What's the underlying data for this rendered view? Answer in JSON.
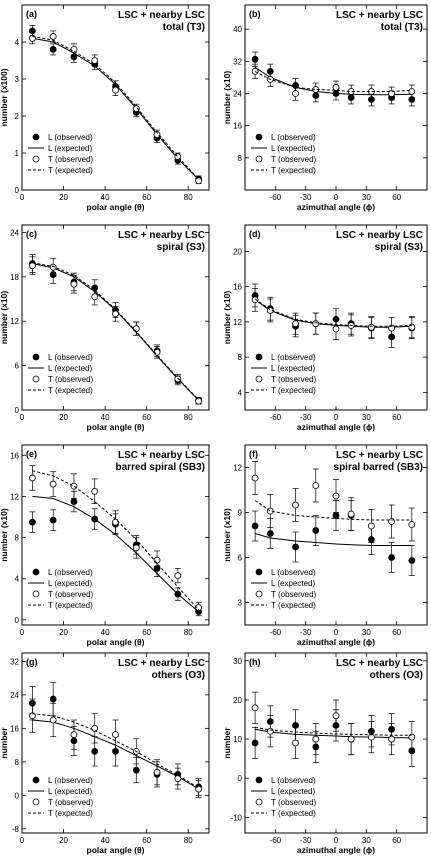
{
  "chart_data": [
    {
      "panel": "(a)",
      "type": "scatter",
      "title": "LSC + nearby LSC",
      "subtitle": "total (T3)",
      "xlabel": "polar angle (θ)",
      "ylabel": "number (x100)",
      "xlim": [
        0,
        90
      ],
      "ylim": [
        0,
        5
      ],
      "xticks": [
        0,
        20,
        40,
        60,
        80
      ],
      "yticks": [
        0,
        1,
        2,
        3,
        4
      ],
      "x": [
        5,
        15,
        25,
        35,
        45,
        55,
        65,
        75,
        85
      ],
      "series": [
        {
          "name": "L (observed)",
          "marker": "filled",
          "values": [
            4.3,
            3.8,
            3.6,
            3.4,
            2.8,
            2.1,
            1.4,
            0.8,
            0.3
          ],
          "err": [
            0.15,
            0.15,
            0.15,
            0.15,
            0.15,
            0.12,
            0.12,
            0.1,
            0.08
          ]
        },
        {
          "name": "L (expected)",
          "line": "solid",
          "values": [
            4.1,
            4.0,
            3.7,
            3.35,
            2.85,
            2.2,
            1.5,
            0.85,
            0.28
          ]
        },
        {
          "name": "T (observed)",
          "marker": "open",
          "values": [
            4.1,
            4.15,
            3.8,
            3.5,
            2.7,
            2.2,
            1.5,
            0.9,
            0.25
          ],
          "err": [
            0.15,
            0.15,
            0.15,
            0.15,
            0.15,
            0.12,
            0.12,
            0.1,
            0.08
          ]
        },
        {
          "name": "T (expected)",
          "line": "dashed",
          "values": [
            4.15,
            4.05,
            3.75,
            3.4,
            2.9,
            2.25,
            1.55,
            0.9,
            0.3
          ]
        }
      ],
      "legend": "bottom-left"
    },
    {
      "panel": "(b)",
      "type": "scatter",
      "title": "LSC + nearby LSC",
      "subtitle": "total (T3)",
      "xlabel": "azimuthal angle (ϕ)",
      "ylabel": "number (x10)",
      "xlim": [
        -90,
        90
      ],
      "ylim": [
        0,
        46
      ],
      "xticks": [
        -60,
        -30,
        0,
        30,
        60
      ],
      "yticks": [
        8,
        16,
        24,
        32,
        40
      ],
      "x": [
        -80,
        -65,
        -40,
        -20,
        0,
        15,
        35,
        55,
        75
      ],
      "series": [
        {
          "name": "L (observed)",
          "marker": "filled",
          "values": [
            32.5,
            29.5,
            26,
            23.5,
            24,
            23,
            22.5,
            23,
            22.5
          ],
          "err": [
            1.8,
            1.8,
            1.7,
            1.6,
            1.6,
            1.6,
            1.6,
            1.6,
            1.6
          ]
        },
        {
          "name": "L (expected)",
          "line": "solid",
          "values": [
            30.5,
            28,
            25.5,
            24.5,
            24,
            23.8,
            23.7,
            23.7,
            23.8
          ]
        },
        {
          "name": "T (observed)",
          "marker": "open",
          "values": [
            29.5,
            27.5,
            24,
            25,
            25.5,
            24.5,
            24.5,
            24,
            24.5
          ],
          "err": [
            1.8,
            1.8,
            1.7,
            1.6,
            1.6,
            1.6,
            1.6,
            1.6,
            1.6
          ]
        },
        {
          "name": "T (expected)",
          "line": "dashed",
          "values": [
            29.5,
            27.5,
            25.5,
            25,
            24.8,
            24.5,
            24.5,
            24.5,
            24.8
          ]
        }
      ],
      "legend": "bottom-left"
    },
    {
      "panel": "(c)",
      "type": "scatter",
      "title": "LSC + nearby LSC",
      "subtitle": "spiral (S3)",
      "xlabel": "polar angle (θ)",
      "ylabel": "number (x10)",
      "xlim": [
        0,
        90
      ],
      "ylim": [
        0,
        25
      ],
      "xticks": [
        0,
        20,
        40,
        60,
        80
      ],
      "yticks": [
        0,
        6,
        12,
        18,
        24
      ],
      "x": [
        5,
        15,
        25,
        35,
        45,
        55,
        65,
        75,
        85
      ],
      "series": [
        {
          "name": "L (observed)",
          "marker": "filled",
          "values": [
            19.8,
            18.3,
            17.3,
            16.5,
            13.5,
            11.0,
            8.0,
            4.0,
            1.3
          ],
          "err": [
            1.2,
            1.2,
            1.2,
            1.1,
            1.0,
            0.9,
            0.8,
            0.6,
            0.4
          ]
        },
        {
          "name": "L (expected)",
          "line": "solid",
          "values": [
            19.8,
            19.2,
            18.0,
            16.0,
            13.5,
            10.5,
            7.3,
            4.2,
            1.3
          ]
        },
        {
          "name": "T (observed)",
          "marker": "open",
          "values": [
            19.5,
            19.3,
            17.0,
            15.3,
            13.0,
            11.0,
            7.8,
            4.2,
            1.2
          ],
          "err": [
            1.2,
            1.2,
            1.2,
            1.1,
            1.0,
            0.9,
            0.8,
            0.6,
            0.4
          ]
        },
        {
          "name": "T (expected)",
          "line": "dashed",
          "values": [
            19.9,
            19.4,
            18.2,
            16.2,
            13.6,
            10.6,
            7.4,
            4.3,
            1.4
          ]
        }
      ],
      "legend": "bottom-left"
    },
    {
      "panel": "(d)",
      "type": "scatter",
      "title": "LSC + nearby LSC",
      "subtitle": "spiral (S3)",
      "xlabel": "azimuthal angle (ϕ)",
      "ylabel": "number (x10)",
      "xlim": [
        -90,
        90
      ],
      "ylim": [
        2,
        23
      ],
      "xticks": [
        -60,
        -30,
        0,
        30,
        60
      ],
      "yticks": [
        4,
        8,
        12,
        16,
        20
      ],
      "x": [
        -80,
        -65,
        -40,
        -20,
        0,
        15,
        35,
        55,
        75
      ],
      "series": [
        {
          "name": "L (observed)",
          "marker": "filled",
          "values": [
            15,
            13.5,
            11.5,
            11.8,
            12.3,
            11.8,
            11.3,
            10.3,
            11.3
          ],
          "err": [
            1.3,
            1.3,
            1.2,
            1.2,
            1.2,
            1.2,
            1.2,
            1.2,
            1.2
          ]
        },
        {
          "name": "L (expected)",
          "line": "solid",
          "values": [
            14.5,
            13.3,
            12.2,
            11.8,
            11.6,
            11.5,
            11.4,
            11.4,
            11.5
          ]
        },
        {
          "name": "T (observed)",
          "marker": "open",
          "values": [
            14.5,
            13.3,
            11.8,
            11.8,
            11.2,
            11.6,
            11.4,
            11.3,
            11.4
          ],
          "err": [
            1.3,
            1.3,
            1.2,
            1.2,
            1.2,
            1.2,
            1.2,
            1.2,
            1.2
          ]
        },
        {
          "name": "T (expected)",
          "line": "dashed",
          "values": [
            14.6,
            13.4,
            12.3,
            11.9,
            11.7,
            11.6,
            11.5,
            11.5,
            11.6
          ]
        }
      ],
      "legend": "bottom-left"
    },
    {
      "panel": "(e)",
      "type": "scatter",
      "title": "LSC + nearby LSC",
      "subtitle": "barred spiral (SB3)",
      "xlabel": "polar angle (θ)",
      "ylabel": "number (x10)",
      "xlim": [
        0,
        90
      ],
      "ylim": [
        -0.5,
        17
      ],
      "xticks": [
        0,
        20,
        40,
        60,
        80
      ],
      "yticks": [
        0,
        4,
        8,
        12,
        16
      ],
      "x": [
        5,
        15,
        25,
        35,
        45,
        55,
        65,
        75,
        85
      ],
      "series": [
        {
          "name": "L (observed)",
          "marker": "filled",
          "values": [
            9.5,
            9.7,
            11.5,
            9.8,
            9.3,
            7.3,
            5.0,
            2.5,
            0.8
          ],
          "err": [
            1.0,
            1.0,
            1.0,
            1.0,
            1.0,
            0.9,
            0.8,
            0.6,
            0.4
          ]
        },
        {
          "name": "L (expected)",
          "line": "solid",
          "values": [
            12.0,
            11.8,
            11.0,
            9.8,
            8.3,
            6.5,
            4.5,
            2.5,
            0.8
          ]
        },
        {
          "name": "T (observed)",
          "marker": "open",
          "values": [
            13.8,
            13.2,
            13.0,
            12.5,
            9.5,
            7.0,
            5.8,
            4.3,
            1.2
          ],
          "err": [
            1.2,
            1.2,
            1.2,
            1.2,
            1.1,
            1.0,
            0.9,
            0.7,
            0.5
          ]
        },
        {
          "name": "T (expected)",
          "line": "dashed",
          "values": [
            14.5,
            14.0,
            13.0,
            11.5,
            9.8,
            7.8,
            5.5,
            3.2,
            1.0
          ]
        }
      ],
      "legend": "bottom-left"
    },
    {
      "panel": "(f)",
      "type": "scatter",
      "title": "LSC + nearby LSC",
      "subtitle": "spiral barred (SB3)",
      "xlabel": "azimuthal angle (ϕ)",
      "ylabel": "number (x10)",
      "xlim": [
        -90,
        90
      ],
      "ylim": [
        1.5,
        13.5
      ],
      "xticks": [
        -60,
        -30,
        0,
        30,
        60
      ],
      "yticks": [
        3,
        6,
        9,
        12
      ],
      "x": [
        -80,
        -65,
        -40,
        -20,
        0,
        15,
        35,
        55,
        75
      ],
      "series": [
        {
          "name": "L (observed)",
          "marker": "filled",
          "values": [
            8.1,
            7.6,
            6.7,
            7.8,
            8.8,
            8.8,
            7.2,
            6.0,
            5.8
          ],
          "err": [
            1.0,
            1.0,
            1.0,
            1.0,
            1.0,
            1.0,
            1.0,
            1.0,
            1.0
          ]
        },
        {
          "name": "L (expected)",
          "line": "solid",
          "values": [
            7.6,
            7.3,
            7.1,
            7.0,
            6.9,
            6.85,
            6.8,
            6.8,
            6.8
          ]
        },
        {
          "name": "T (observed)",
          "marker": "open",
          "values": [
            11.3,
            9.1,
            9.5,
            10.8,
            10.1,
            8.9,
            8.1,
            8.4,
            8.2
          ],
          "err": [
            1.1,
            1.1,
            1.1,
            1.1,
            1.1,
            1.1,
            1.1,
            1.1,
            1.1
          ]
        },
        {
          "name": "T (expected)",
          "line": "dashed",
          "values": [
            9.8,
            9.1,
            8.8,
            8.7,
            8.6,
            8.55,
            8.5,
            8.5,
            8.5
          ]
        }
      ],
      "legend": "bottom-left"
    },
    {
      "panel": "(g)",
      "type": "scatter",
      "title": "LSC + nearby LSC",
      "subtitle": "others (O3)",
      "xlabel": "polar angle (θ)",
      "ylabel": "number",
      "xlim": [
        0,
        90
      ],
      "ylim": [
        -9,
        34
      ],
      "xticks": [
        0,
        20,
        40,
        60,
        80
      ],
      "yticks": [
        -8,
        0,
        8,
        16,
        24,
        32
      ],
      "x": [
        5,
        15,
        25,
        35,
        45,
        55,
        65,
        75,
        85
      ],
      "series": [
        {
          "name": "L (observed)",
          "marker": "filled",
          "values": [
            22,
            23,
            13,
            10.5,
            10.5,
            6,
            5,
            5,
            2
          ],
          "err": [
            4,
            4,
            3.5,
            3.5,
            3.5,
            3,
            3,
            2.5,
            2
          ]
        },
        {
          "name": "L (expected)",
          "line": "solid",
          "values": [
            18,
            17.5,
            16,
            14,
            12,
            9.5,
            7,
            4.5,
            1.5
          ]
        },
        {
          "name": "T (observed)",
          "marker": "open",
          "values": [
            19,
            18,
            14.5,
            16,
            14.5,
            10.5,
            5.5,
            4,
            1.5
          ],
          "err": [
            4,
            4,
            3.5,
            3.5,
            3.5,
            3,
            3,
            2.5,
            2
          ]
        },
        {
          "name": "T (expected)",
          "line": "dashed",
          "values": [
            19.5,
            19,
            17.5,
            15.5,
            13,
            10.5,
            7.5,
            4.8,
            1.8
          ]
        }
      ],
      "legend": "bottom-left"
    },
    {
      "panel": "(h)",
      "type": "scatter",
      "title": "LSC + nearby LSC",
      "subtitle": "others (O3)",
      "xlabel": "azimuthal angle (ϕ)",
      "ylabel": "number",
      "xlim": [
        -90,
        90
      ],
      "ylim": [
        -14,
        32
      ],
      "xticks": [
        -60,
        -30,
        0,
        30,
        60
      ],
      "yticks": [
        -10,
        0,
        10,
        20,
        30
      ],
      "x": [
        -80,
        -65,
        -40,
        -20,
        0,
        15,
        35,
        55,
        75
      ],
      "series": [
        {
          "name": "L (observed)",
          "marker": "filled",
          "values": [
            9,
            14.5,
            13.5,
            8,
            13.5,
            10,
            12,
            12.5,
            7
          ],
          "err": [
            4,
            4,
            4,
            4,
            4,
            4,
            4,
            4,
            4
          ]
        },
        {
          "name": "L (expected)",
          "line": "solid",
          "values": [
            12.5,
            11.8,
            11.2,
            11,
            10.8,
            10.6,
            10.5,
            10.4,
            10.3
          ]
        },
        {
          "name": "T (observed)",
          "marker": "open",
          "values": [
            18,
            12,
            9,
            10,
            16,
            10,
            10.5,
            10,
            10.5
          ],
          "err": [
            4,
            4,
            4,
            4,
            4,
            4,
            4,
            4,
            4
          ]
        },
        {
          "name": "T (expected)",
          "line": "dashed",
          "values": [
            13,
            12.3,
            11.8,
            11.5,
            11.3,
            11.2,
            11.1,
            11,
            11
          ]
        }
      ],
      "legend": "bottom-left"
    }
  ]
}
